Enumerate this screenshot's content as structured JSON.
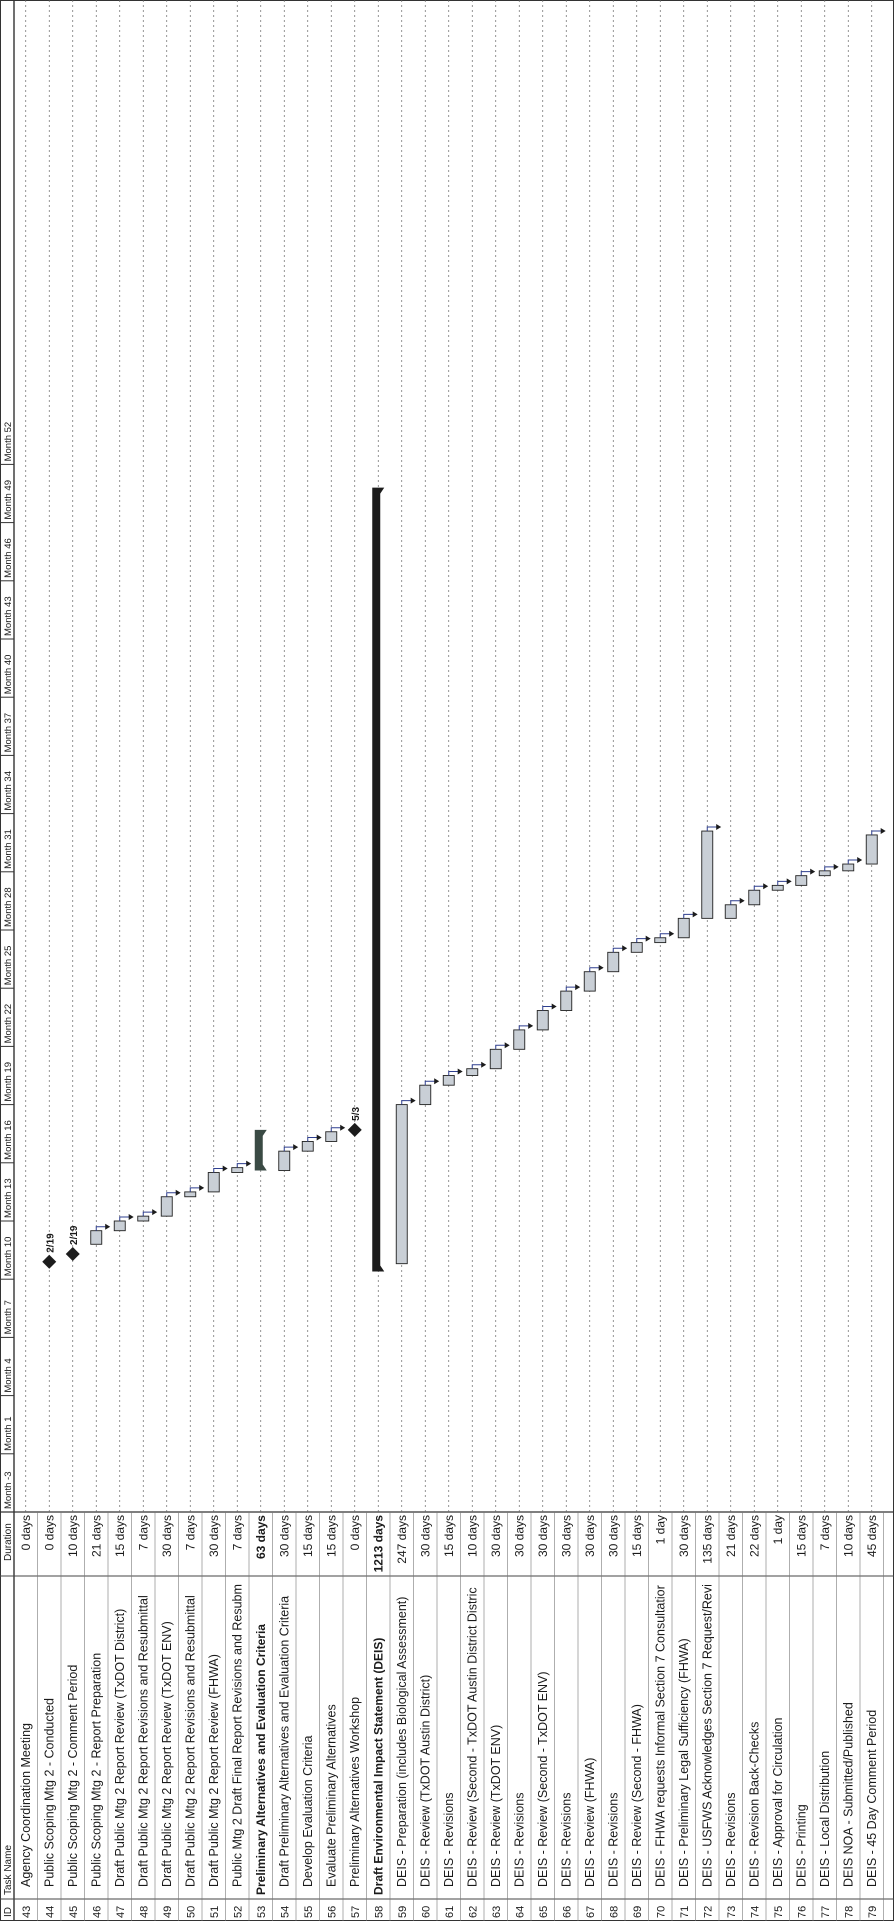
{
  "chart_data": {
    "type": "gantt",
    "header": {
      "id": "ID",
      "name": "Task Name",
      "duration": "Duration"
    },
    "timescale": [
      "Month -3",
      "Month 1",
      "Month 4",
      "Month 7",
      "Month 10",
      "Month 13",
      "Month 16",
      "Month 19",
      "Month 22",
      "Month 25",
      "Month 28",
      "Month 31",
      "Month 34",
      "Month 37",
      "Month 40",
      "Month 43",
      "Month 46",
      "Month 49",
      "Month 52"
    ],
    "tasks": [
      {
        "id": "43",
        "name": "Agency Coordination Meeting",
        "duration": "0 days",
        "bold": false,
        "kind": "none"
      },
      {
        "id": "44",
        "name": "Public Scoping Mtg 2 - Conducted",
        "duration": "0 days",
        "bold": false,
        "kind": "milestone",
        "start": 9.9,
        "label": "2/19"
      },
      {
        "id": "45",
        "name": "Public Scoping Mtg 2 - Comment Period",
        "duration": "10 days",
        "bold": false,
        "kind": "milestone",
        "start": 10.3,
        "label": "2/19"
      },
      {
        "id": "46",
        "name": "Public Scoping Mtg 2 - Report Preparation",
        "duration": "21 days",
        "bold": false,
        "kind": "task",
        "start": 10.8,
        "end": 11.5
      },
      {
        "id": "47",
        "name": "Draft Public Mtg 2 Report Review (TxDOT District)",
        "duration": "15 days",
        "bold": false,
        "kind": "task",
        "start": 11.5,
        "end": 12.0
      },
      {
        "id": "48",
        "name": "Draft Public Mtg 2 Report Revisions and Resubmittal",
        "duration": "7 days",
        "bold": false,
        "kind": "task",
        "start": 12.0,
        "end": 12.25
      },
      {
        "id": "49",
        "name": "Draft Public Mtg 2 Report Review (TxDOT ENV)",
        "duration": "30 days",
        "bold": false,
        "kind": "task",
        "start": 12.25,
        "end": 13.25
      },
      {
        "id": "50",
        "name": "Draft Public Mtg 2 Report Revisions and Resubmittal",
        "duration": "7 days",
        "bold": false,
        "kind": "task",
        "start": 13.25,
        "end": 13.5
      },
      {
        "id": "51",
        "name": "Draft Public Mtg 2 Report Review (FHWA)",
        "duration": "30 days",
        "bold": false,
        "kind": "task",
        "start": 13.5,
        "end": 14.5
      },
      {
        "id": "52",
        "name": "Public Mtg 2 Draft Final Report Revisions and Resubm",
        "duration": "7 days",
        "bold": false,
        "kind": "task",
        "start": 14.5,
        "end": 14.75
      },
      {
        "id": "53",
        "name": "Preliminary Alternatives and Evaluation Criteria",
        "duration": "63 days",
        "bold": true,
        "kind": "summary",
        "start": 14.6,
        "end": 16.7
      },
      {
        "id": "54",
        "name": "Draft Preliminary Alternatives and Evaluation Criteria",
        "duration": "30 days",
        "bold": false,
        "kind": "task",
        "start": 14.6,
        "end": 15.6
      },
      {
        "id": "55",
        "name": "Develop Evaluation Criteria",
        "duration": "15 days",
        "bold": false,
        "kind": "task",
        "start": 15.6,
        "end": 16.1
      },
      {
        "id": "56",
        "name": "Evaluate Preliminary Alternatives",
        "duration": "15 days",
        "bold": false,
        "kind": "task",
        "start": 16.1,
        "end": 16.6
      },
      {
        "id": "57",
        "name": "Preliminary Alternatives Workshop",
        "duration": "0 days",
        "bold": false,
        "kind": "milestone",
        "start": 16.7,
        "label": "5/3"
      },
      {
        "id": "58",
        "name": "Draft Environmental Impact Statement (DEIS)",
        "duration": "1213 days",
        "bold": true,
        "kind": "summary",
        "start": 9.4,
        "end": 49.8
      },
      {
        "id": "59",
        "name": "DEIS - Preparation (includes Biological Assessment)",
        "duration": "247 days",
        "bold": false,
        "kind": "task",
        "start": 9.8,
        "end": 18.0
      },
      {
        "id": "60",
        "name": "DEIS - Review (TxDOT Austin District)",
        "duration": "30 days",
        "bold": false,
        "kind": "task",
        "start": 18.0,
        "end": 19.0
      },
      {
        "id": "61",
        "name": "DEIS - Revisions",
        "duration": "15 days",
        "bold": false,
        "kind": "task",
        "start": 19.0,
        "end": 19.5
      },
      {
        "id": "62",
        "name": "DEIS - Review (Second - TxDOT Austin District Distric",
        "duration": "10 days",
        "bold": false,
        "kind": "task",
        "start": 19.5,
        "end": 19.85
      },
      {
        "id": "63",
        "name": "DEIS - Review (TxDOT ENV)",
        "duration": "30 days",
        "bold": false,
        "kind": "task",
        "start": 19.85,
        "end": 20.85
      },
      {
        "id": "64",
        "name": "DEIS - Revisions",
        "duration": "30 days",
        "bold": false,
        "kind": "task",
        "start": 20.85,
        "end": 21.85
      },
      {
        "id": "65",
        "name": "DEIS - Review (Second - TxDOT ENV)",
        "duration": "30 days",
        "bold": false,
        "kind": "task",
        "start": 21.85,
        "end": 22.85
      },
      {
        "id": "66",
        "name": "DEIS - Revisions",
        "duration": "30 days",
        "bold": false,
        "kind": "task",
        "start": 22.85,
        "end": 23.85
      },
      {
        "id": "67",
        "name": "DEIS - Review (FHWA)",
        "duration": "30 days",
        "bold": false,
        "kind": "task",
        "start": 23.85,
        "end": 24.85
      },
      {
        "id": "68",
        "name": "DEIS - Revisions",
        "duration": "30 days",
        "bold": false,
        "kind": "task",
        "start": 24.85,
        "end": 25.85
      },
      {
        "id": "69",
        "name": "DEIS - Review (Second - FHWA)",
        "duration": "15 days",
        "bold": false,
        "kind": "task",
        "start": 25.85,
        "end": 26.35
      },
      {
        "id": "70",
        "name": "DEIS - FHWA requests Informal Section 7 Consultatior",
        "duration": "1 day",
        "bold": false,
        "kind": "task",
        "start": 26.35,
        "end": 26.6
      },
      {
        "id": "71",
        "name": "DEIS - Preliminary Legal Sufficiency (FHWA)",
        "duration": "30 days",
        "bold": false,
        "kind": "task",
        "start": 26.6,
        "end": 27.6
      },
      {
        "id": "72",
        "name": "DEIS - USFWS Acknowledges Section 7 Request/Revi",
        "duration": "135 days",
        "bold": false,
        "kind": "task",
        "start": 27.6,
        "end": 32.1
      },
      {
        "id": "73",
        "name": "DEIS - Revisions",
        "duration": "21 days",
        "bold": false,
        "kind": "task",
        "start": 27.6,
        "end": 28.3
      },
      {
        "id": "74",
        "name": "DEIS - Revision Back-Checks",
        "duration": "22 days",
        "bold": false,
        "kind": "task",
        "start": 28.3,
        "end": 29.05
      },
      {
        "id": "75",
        "name": "DEIS - Approval for Circulation",
        "duration": "1 day",
        "bold": false,
        "kind": "task",
        "start": 29.05,
        "end": 29.3
      },
      {
        "id": "76",
        "name": "DEIS - Printing",
        "duration": "15 days",
        "bold": false,
        "kind": "task",
        "start": 29.3,
        "end": 29.8
      },
      {
        "id": "77",
        "name": "DEIS - Local Distribution",
        "duration": "7 days",
        "bold": false,
        "kind": "task",
        "start": 29.8,
        "end": 30.05
      },
      {
        "id": "78",
        "name": "DEIS NOA - Submitted/Published",
        "duration": "10 days",
        "bold": false,
        "kind": "task",
        "start": 30.05,
        "end": 30.4
      },
      {
        "id": "79",
        "name": "DEIS - 45 Day Comment Period",
        "duration": "45 days",
        "bold": false,
        "kind": "task",
        "start": 30.4,
        "end": 31.9
      }
    ],
    "colors": {
      "task_fill": "#c9cfd6",
      "summary": "#1c1c1c",
      "summary_53": "#3a4a44",
      "link": "#2e3f8f",
      "grid": "#555555",
      "text": "#1a1a1a"
    }
  }
}
